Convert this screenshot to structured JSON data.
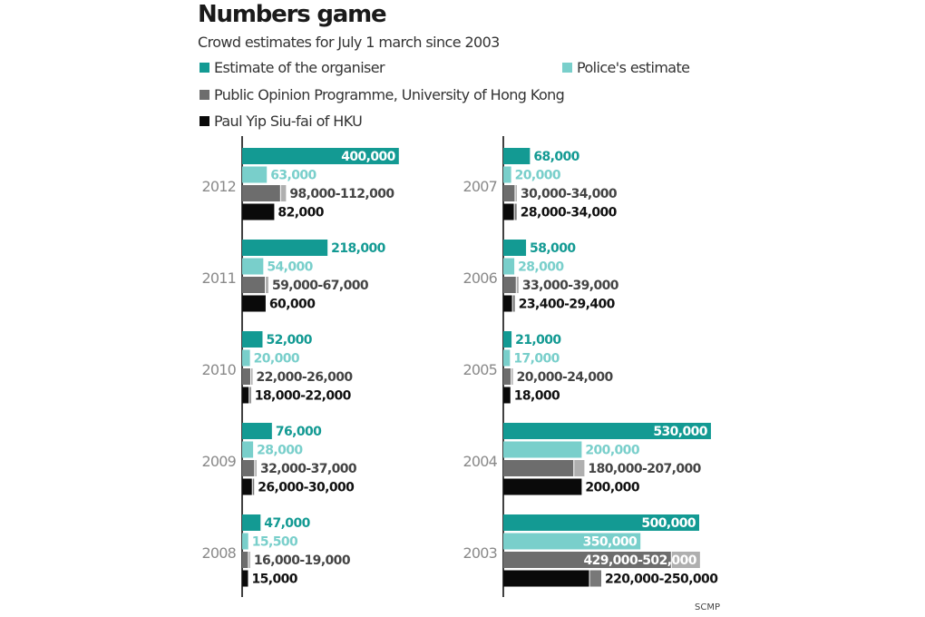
{
  "chart_data": {
    "type": "bar",
    "orientation": "horizontal",
    "title": "Numbers game",
    "subtitle": "Crowd estimates for July 1 march since 2003",
    "source": "SCMP",
    "series": [
      {
        "key": "organiser",
        "name": "Estimate of the organiser",
        "color": "#139a93"
      },
      {
        "key": "police",
        "name": "Police's estimate",
        "color": "#79cfcb"
      },
      {
        "key": "pop",
        "name": "Public Opinion Programme, University of Hong Kong",
        "color": "#6d6d6d"
      },
      {
        "key": "yip",
        "name": "Paul Yip Siu-fai of HKU",
        "color": "#0a0a0a"
      }
    ],
    "panels": [
      {
        "position": "left",
        "years": [
          {
            "year": "2012",
            "values": [
              {
                "key": "organiser",
                "low": 400000,
                "label": "400,000"
              },
              {
                "key": "police",
                "low": 63000,
                "label": "63,000"
              },
              {
                "key": "pop",
                "low": 98000,
                "high": 112000,
                "label": "98,000-112,000"
              },
              {
                "key": "yip",
                "low": 82000,
                "label": "82,000"
              }
            ]
          },
          {
            "year": "2011",
            "values": [
              {
                "key": "organiser",
                "low": 218000,
                "label": "218,000"
              },
              {
                "key": "police",
                "low": 54000,
                "label": "54,000"
              },
              {
                "key": "pop",
                "low": 59000,
                "high": 67000,
                "label": "59,000-67,000"
              },
              {
                "key": "yip",
                "low": 60000,
                "label": "60,000"
              }
            ]
          },
          {
            "year": "2010",
            "values": [
              {
                "key": "organiser",
                "low": 52000,
                "label": "52,000"
              },
              {
                "key": "police",
                "low": 20000,
                "label": "20,000"
              },
              {
                "key": "pop",
                "low": 22000,
                "high": 26000,
                "label": "22,000-26,000"
              },
              {
                "key": "yip",
                "low": 18000,
                "high": 22000,
                "label": "18,000-22,000"
              }
            ]
          },
          {
            "year": "2009",
            "values": [
              {
                "key": "organiser",
                "low": 76000,
                "label": "76,000"
              },
              {
                "key": "police",
                "low": 28000,
                "label": "28,000"
              },
              {
                "key": "pop",
                "low": 32000,
                "high": 37000,
                "label": "32,000-37,000"
              },
              {
                "key": "yip",
                "low": 26000,
                "high": 30000,
                "label": "26,000-30,000"
              }
            ]
          },
          {
            "year": "2008",
            "values": [
              {
                "key": "organiser",
                "low": 47000,
                "label": "47,000"
              },
              {
                "key": "police",
                "low": 15500,
                "label": "15,500"
              },
              {
                "key": "pop",
                "low": 16000,
                "high": 19000,
                "label": "16,000-19,000"
              },
              {
                "key": "yip",
                "low": 15000,
                "label": "15,000"
              }
            ]
          }
        ]
      },
      {
        "position": "right",
        "years": [
          {
            "year": "2007",
            "values": [
              {
                "key": "organiser",
                "low": 68000,
                "label": "68,000"
              },
              {
                "key": "police",
                "low": 20000,
                "label": "20,000"
              },
              {
                "key": "pop",
                "low": 30000,
                "high": 34000,
                "label": "30,000-34,000"
              },
              {
                "key": "yip",
                "low": 28000,
                "high": 34000,
                "label": "28,000-34,000"
              }
            ]
          },
          {
            "year": "2006",
            "values": [
              {
                "key": "organiser",
                "low": 58000,
                "label": "58,000"
              },
              {
                "key": "police",
                "low": 28000,
                "label": "28,000"
              },
              {
                "key": "pop",
                "low": 33000,
                "high": 39000,
                "label": "33,000-39,000"
              },
              {
                "key": "yip",
                "low": 23400,
                "high": 29400,
                "label": "23,400-29,400"
              }
            ]
          },
          {
            "year": "2005",
            "values": [
              {
                "key": "organiser",
                "low": 21000,
                "label": "21,000"
              },
              {
                "key": "police",
                "low": 17000,
                "label": "17,000"
              },
              {
                "key": "pop",
                "low": 20000,
                "high": 24000,
                "label": "20,000-24,000"
              },
              {
                "key": "yip",
                "low": 18000,
                "label": "18,000"
              }
            ]
          },
          {
            "year": "2004",
            "values": [
              {
                "key": "organiser",
                "low": 530000,
                "label": "530,000"
              },
              {
                "key": "police",
                "low": 200000,
                "label": "200,000"
              },
              {
                "key": "pop",
                "low": 180000,
                "high": 207000,
                "label": "180,000-207,000"
              },
              {
                "key": "yip",
                "low": 200000,
                "label": "200,000"
              }
            ]
          },
          {
            "year": "2003",
            "values": [
              {
                "key": "organiser",
                "low": 500000,
                "label": "500,000"
              },
              {
                "key": "police",
                "low": 350000,
                "label": "350,000"
              },
              {
                "key": "pop",
                "low": 429000,
                "high": 502000,
                "label": "429,000-502,000"
              },
              {
                "key": "yip",
                "low": 220000,
                "high": 250000,
                "label": "220,000-250,000"
              }
            ]
          }
        ]
      }
    ]
  }
}
